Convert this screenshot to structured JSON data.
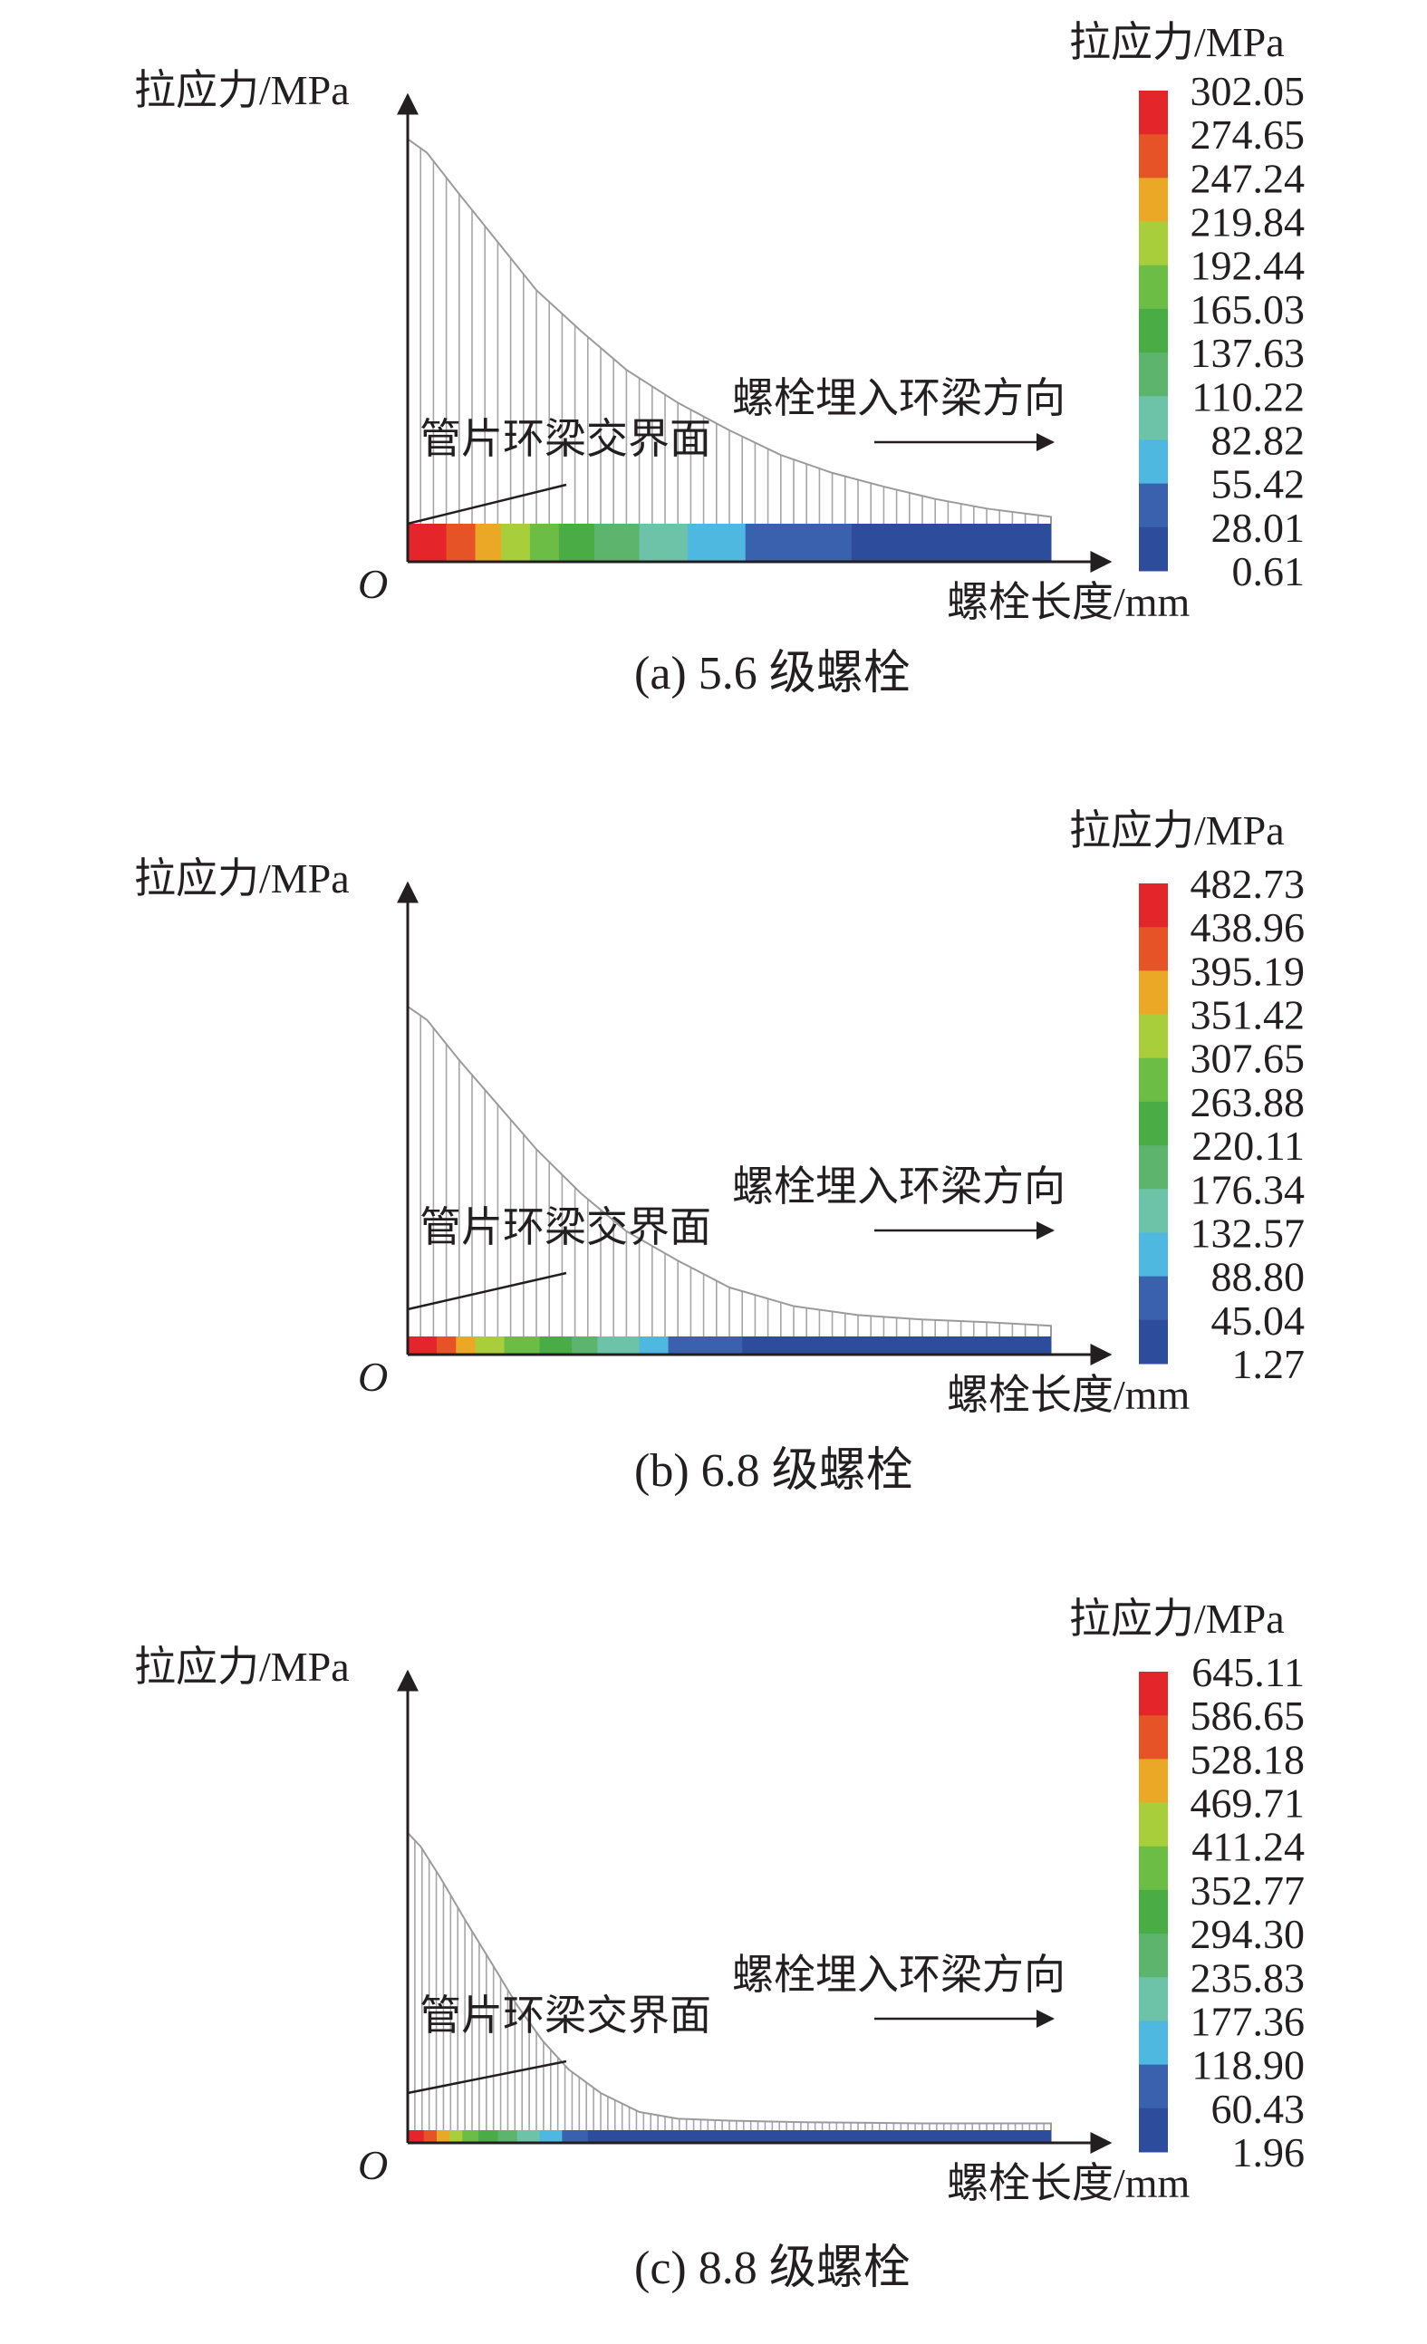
{
  "chart_data": [
    {
      "type": "area",
      "panel_caption": "(a) 5.6 级螺栓",
      "ylabel": "拉应力/MPa",
      "xlabel": "螺栓长度/mm",
      "origin_label": "O",
      "legend_title": "拉应力/MPa",
      "legend_ticks": [
        "302.05",
        "274.65",
        "247.24",
        "219.84",
        "192.44",
        "165.03",
        "137.63",
        "110.22",
        "82.82",
        "55.42",
        "28.01",
        "0.61"
      ],
      "ylim": [
        0,
        302.05
      ],
      "x_fraction": [
        0.0,
        0.03,
        0.08,
        0.14,
        0.2,
        0.27,
        0.34,
        0.42,
        0.5,
        0.58,
        0.66,
        0.74,
        0.82,
        0.9,
        1.0
      ],
      "values": [
        280,
        270,
        240,
        205,
        170,
        140,
        112,
        88,
        68,
        50,
        37,
        27,
        18,
        11,
        5
      ],
      "colorbar_segments": [
        {
          "value": 302.05,
          "width": 0.06
        },
        {
          "value": 274.65,
          "width": 0.045
        },
        {
          "value": 247.24,
          "width": 0.04
        },
        {
          "value": 219.84,
          "width": 0.045
        },
        {
          "value": 192.44,
          "width": 0.045
        },
        {
          "value": 165.03,
          "width": 0.055
        },
        {
          "value": 137.63,
          "width": 0.07
        },
        {
          "value": 110.22,
          "width": 0.075
        },
        {
          "value": 82.82,
          "width": 0.09
        },
        {
          "value": 55.42,
          "width": 0.165
        },
        {
          "value": 28.01,
          "width": 0.31
        }
      ],
      "annotations": {
        "interface": "管片环梁交界面",
        "direction": "螺栓埋入环梁方向"
      }
    },
    {
      "type": "area",
      "panel_caption": "(b) 6.8 级螺栓",
      "ylabel": "拉应力/MPa",
      "xlabel": "螺栓长度/mm",
      "origin_label": "O",
      "legend_title": "拉应力/MPa",
      "legend_ticks": [
        "482.73",
        "438.96",
        "395.19",
        "351.42",
        "307.65",
        "263.88",
        "220.11",
        "176.34",
        "132.57",
        "88.80",
        "45.04",
        "1.27"
      ],
      "ylim": [
        0,
        482.73
      ],
      "x_fraction": [
        0.0,
        0.03,
        0.08,
        0.14,
        0.2,
        0.27,
        0.34,
        0.42,
        0.5,
        0.6,
        0.7,
        0.8,
        0.9,
        1.0
      ],
      "values": [
        370,
        355,
        310,
        260,
        210,
        160,
        118,
        85,
        55,
        34,
        24,
        19,
        16,
        12
      ],
      "colorbar_segments": [
        {
          "value": 482.73,
          "width": 0.045
        },
        {
          "value": 438.96,
          "width": 0.03
        },
        {
          "value": 395.19,
          "width": 0.03
        },
        {
          "value": 351.42,
          "width": 0.045
        },
        {
          "value": 307.65,
          "width": 0.055
        },
        {
          "value": 263.88,
          "width": 0.05
        },
        {
          "value": 220.11,
          "width": 0.04
        },
        {
          "value": 176.34,
          "width": 0.065
        },
        {
          "value": 132.57,
          "width": 0.045
        },
        {
          "value": 88.8,
          "width": 0.115
        },
        {
          "value": 45.04,
          "width": 0.48
        }
      ],
      "annotations": {
        "interface": "管片环梁交界面",
        "direction": "螺栓埋入环梁方向"
      }
    },
    {
      "type": "area",
      "panel_caption": "(c) 8.8 级螺栓",
      "ylabel": "拉应力/MPa",
      "xlabel": "螺栓长度/mm",
      "origin_label": "O",
      "legend_title": "拉应力/MPa",
      "legend_ticks": [
        "645.11",
        "586.65",
        "528.18",
        "469.71",
        "411.24",
        "352.77",
        "294.30",
        "235.83",
        "177.36",
        "118.90",
        "60.43",
        "1.96"
      ],
      "ylim": [
        0,
        645.11
      ],
      "x_fraction": [
        0.0,
        0.02,
        0.05,
        0.09,
        0.13,
        0.17,
        0.21,
        0.25,
        0.3,
        0.36,
        0.42,
        0.5,
        0.6,
        0.7,
        0.8,
        0.9,
        1.0
      ],
      "values": [
        440,
        420,
        375,
        310,
        248,
        185,
        132,
        90,
        55,
        27,
        17,
        14,
        12,
        11,
        10,
        10,
        10
      ],
      "colorbar_segments": [
        {
          "value": 645.11,
          "width": 0.025
        },
        {
          "value": 586.65,
          "width": 0.02
        },
        {
          "value": 528.18,
          "width": 0.02
        },
        {
          "value": 469.71,
          "width": 0.02
        },
        {
          "value": 411.24,
          "width": 0.025
        },
        {
          "value": 352.77,
          "width": 0.03
        },
        {
          "value": 294.3,
          "width": 0.03
        },
        {
          "value": 235.83,
          "width": 0.035
        },
        {
          "value": 177.36,
          "width": 0.035
        },
        {
          "value": 118.9,
          "width": 0.04
        },
        {
          "value": 60.43,
          "width": 0.72
        }
      ],
      "annotations": {
        "interface": "管片环梁交界面",
        "direction": "螺栓埋入环梁方向"
      }
    }
  ],
  "colors": {
    "legend": [
      "#e4262a",
      "#e55327",
      "#eba827",
      "#a8cf3b",
      "#6cbd45",
      "#4aac45",
      "#5db46c",
      "#6cc3a8",
      "#4fb8e0",
      "#3961ad",
      "#2d4c9b",
      "#24449a"
    ],
    "axis": "#231f20",
    "outline": "#9b9b9b",
    "hatch": "#a6a6a6"
  }
}
